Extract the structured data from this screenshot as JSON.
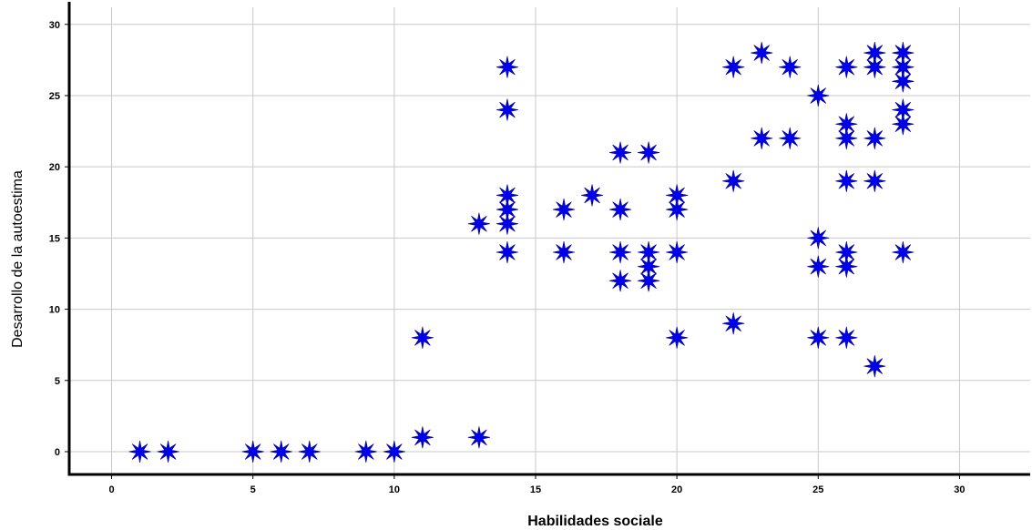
{
  "chart_data": {
    "type": "scatter",
    "title": "",
    "xlabel": "Habilidades sociale",
    "ylabel": "Desarrollo de la autoestima",
    "xlim": [
      -1.5,
      32.5
    ],
    "ylim": [
      -1.6,
      31.2
    ],
    "xticks": [
      0,
      5,
      10,
      15,
      20,
      25,
      30
    ],
    "yticks": [
      0,
      5,
      10,
      15,
      20,
      25,
      30
    ],
    "grid": true,
    "marker": "star",
    "marker_color": "#0000ee",
    "series": [
      {
        "points": [
          [
            1,
            0
          ],
          [
            2,
            0
          ],
          [
            5,
            0
          ],
          [
            6,
            0
          ],
          [
            7,
            0
          ],
          [
            9,
            0
          ],
          [
            10,
            0
          ],
          [
            11,
            1
          ],
          [
            11,
            8
          ],
          [
            13,
            1
          ],
          [
            13,
            16
          ],
          [
            14,
            27
          ],
          [
            14,
            24
          ],
          [
            14,
            18
          ],
          [
            14,
            17
          ],
          [
            14,
            16
          ],
          [
            14,
            14
          ],
          [
            16,
            17
          ],
          [
            16,
            14
          ],
          [
            17,
            18
          ],
          [
            18,
            21
          ],
          [
            18,
            17
          ],
          [
            18,
            14
          ],
          [
            18,
            12
          ],
          [
            19,
            21
          ],
          [
            19,
            14
          ],
          [
            19,
            13
          ],
          [
            19,
            12
          ],
          [
            20,
            18
          ],
          [
            20,
            17
          ],
          [
            20,
            14
          ],
          [
            20,
            8
          ],
          [
            22,
            27
          ],
          [
            22,
            19
          ],
          [
            22,
            9
          ],
          [
            23,
            28
          ],
          [
            23,
            22
          ],
          [
            24,
            27
          ],
          [
            24,
            22
          ],
          [
            25,
            25
          ],
          [
            25,
            15
          ],
          [
            25,
            13
          ],
          [
            25,
            8
          ],
          [
            26,
            27
          ],
          [
            26,
            23
          ],
          [
            26,
            22
          ],
          [
            26,
            19
          ],
          [
            26,
            14
          ],
          [
            26,
            13
          ],
          [
            26,
            8
          ],
          [
            27,
            28
          ],
          [
            27,
            27
          ],
          [
            27,
            22
          ],
          [
            27,
            19
          ],
          [
            27,
            6
          ],
          [
            28,
            28
          ],
          [
            28,
            27
          ],
          [
            28,
            26
          ],
          [
            28,
            24
          ],
          [
            28,
            23
          ],
          [
            28,
            14
          ]
        ]
      }
    ]
  }
}
